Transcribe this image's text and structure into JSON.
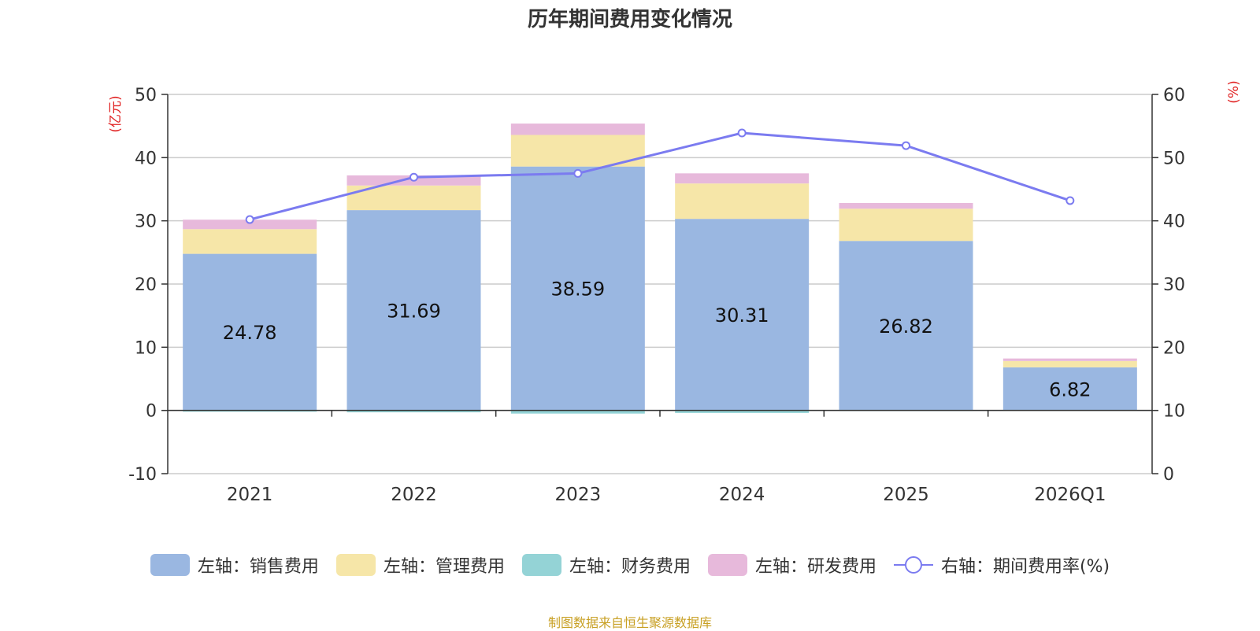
{
  "colors": {
    "sales": "#9ab7e1",
    "admin": "#f6e6a8",
    "finance": "#94d3d6",
    "rnd": "#e7b9db",
    "ratio_line": "#7b7bf0",
    "axis_unit": "#e02020",
    "source": "#c8a024"
  },
  "chart_data": {
    "type": "bar",
    "title": "历年期间费用变化情况",
    "categories": [
      "2021",
      "2022",
      "2023",
      "2024",
      "2025",
      "2026Q1"
    ],
    "left_axis": {
      "unit": "(亿元)",
      "min": -10,
      "max": 50,
      "ticks": [
        "50",
        "40",
        "30",
        "20",
        "10",
        "0",
        "-10"
      ]
    },
    "right_axis": {
      "unit": "(%)",
      "min": 0,
      "max": 60,
      "ticks": [
        "60",
        "50",
        "40",
        "30",
        "20",
        "10",
        "0"
      ]
    },
    "series": [
      {
        "name": "左轴：销售费用",
        "key": "sales",
        "axis": "left",
        "values": [
          24.78,
          31.69,
          38.59,
          30.31,
          26.82,
          6.82
        ]
      },
      {
        "name": "左轴：管理费用",
        "key": "admin",
        "axis": "left",
        "values": [
          3.9,
          3.9,
          5.0,
          5.6,
          5.1,
          1.0
        ]
      },
      {
        "name": "左轴：财务费用",
        "key": "finance",
        "axis": "left",
        "values": [
          -0.2,
          -0.3,
          -0.5,
          -0.4,
          -0.1,
          -0.05
        ]
      },
      {
        "name": "左轴：研发费用",
        "key": "rnd",
        "axis": "left",
        "values": [
          1.5,
          1.6,
          1.8,
          1.6,
          0.9,
          0.4
        ]
      }
    ],
    "line_series": {
      "name": "右轴：期间费用率(%)",
      "axis": "right",
      "values": [
        40.2,
        46.9,
        47.5,
        53.9,
        51.9,
        43.2
      ]
    },
    "data_labels": [
      "24.78",
      "31.69",
      "38.59",
      "30.31",
      "26.82",
      "6.82"
    ]
  },
  "source_text": "制图数据来自恒生聚源数据库"
}
